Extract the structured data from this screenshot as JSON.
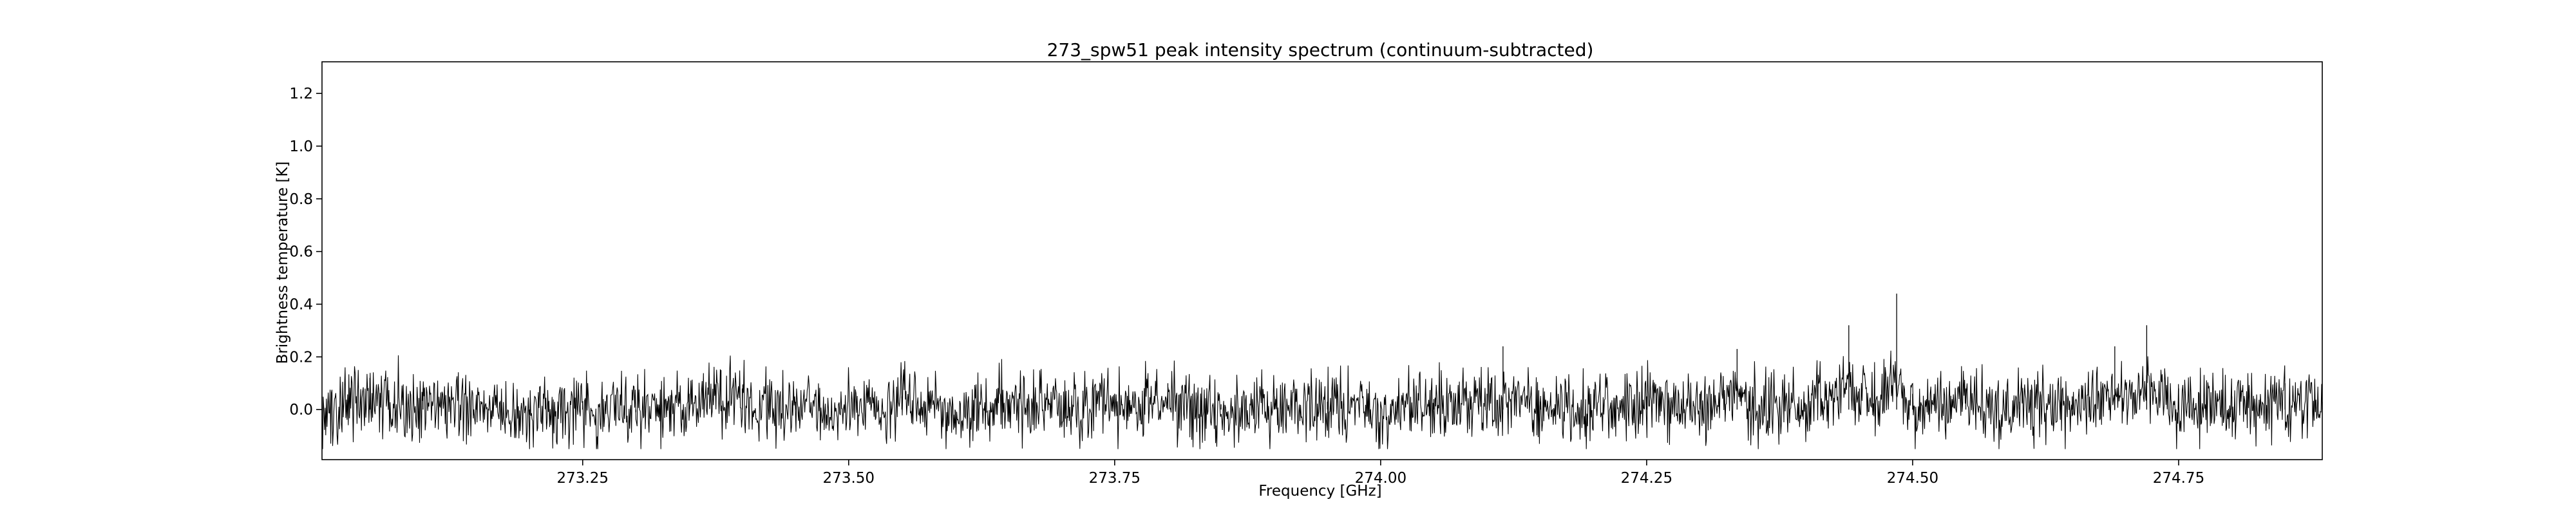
{
  "chart_data": {
    "type": "line",
    "title": "273_spw51 peak intensity spectrum (continuum-subtracted)",
    "xlabel": "Frequency [GHz]",
    "ylabel": "Brightness temperature [K]",
    "xlim": [
      273.005,
      274.885
    ],
    "ylim": [
      -0.19,
      1.32
    ],
    "xticks": [
      273.25,
      273.5,
      273.75,
      274.0,
      274.25,
      274.5,
      274.75
    ],
    "xtick_labels": [
      "273.25",
      "273.50",
      "273.75",
      "274.00",
      "274.25",
      "274.50",
      "274.75"
    ],
    "yticks": [
      0.0,
      0.2,
      0.4,
      0.6,
      0.8,
      1.0,
      1.2
    ],
    "ytick_labels": [
      "0.0",
      "0.2",
      "0.4",
      "0.6",
      "0.8",
      "1.0",
      "1.2"
    ],
    "grid": false,
    "line_color": "#000000",
    "series": [
      {
        "x": [
          273.005,
          273.05,
          273.1,
          273.15,
          273.2,
          273.25,
          273.3,
          273.35,
          273.38,
          273.4,
          273.45,
          273.5,
          273.55,
          273.6,
          273.65,
          273.7,
          273.75,
          273.8,
          273.85,
          273.9,
          273.95,
          274.0,
          274.05,
          274.1,
          274.115,
          274.15,
          274.2,
          274.25,
          274.3,
          274.335,
          274.35,
          274.4,
          274.44,
          274.45,
          274.485,
          274.5,
          274.55,
          274.6,
          274.65,
          274.69,
          274.72,
          274.75,
          274.8,
          274.85,
          274.885
        ],
        "y": [
          0.05,
          0.12,
          0.08,
          0.02,
          -0.02,
          0.03,
          -0.01,
          0.06,
          0.15,
          0.08,
          0.03,
          0.0,
          0.05,
          -0.02,
          0.04,
          0.0,
          0.06,
          0.1,
          0.02,
          0.05,
          0.03,
          0.0,
          0.04,
          0.06,
          0.24,
          0.03,
          0.0,
          0.05,
          0.06,
          0.23,
          0.05,
          0.02,
          0.32,
          0.08,
          0.44,
          0.06,
          0.08,
          0.03,
          0.05,
          0.24,
          0.32,
          0.08,
          0.05,
          0.1,
          0.03
        ]
      }
    ]
  }
}
